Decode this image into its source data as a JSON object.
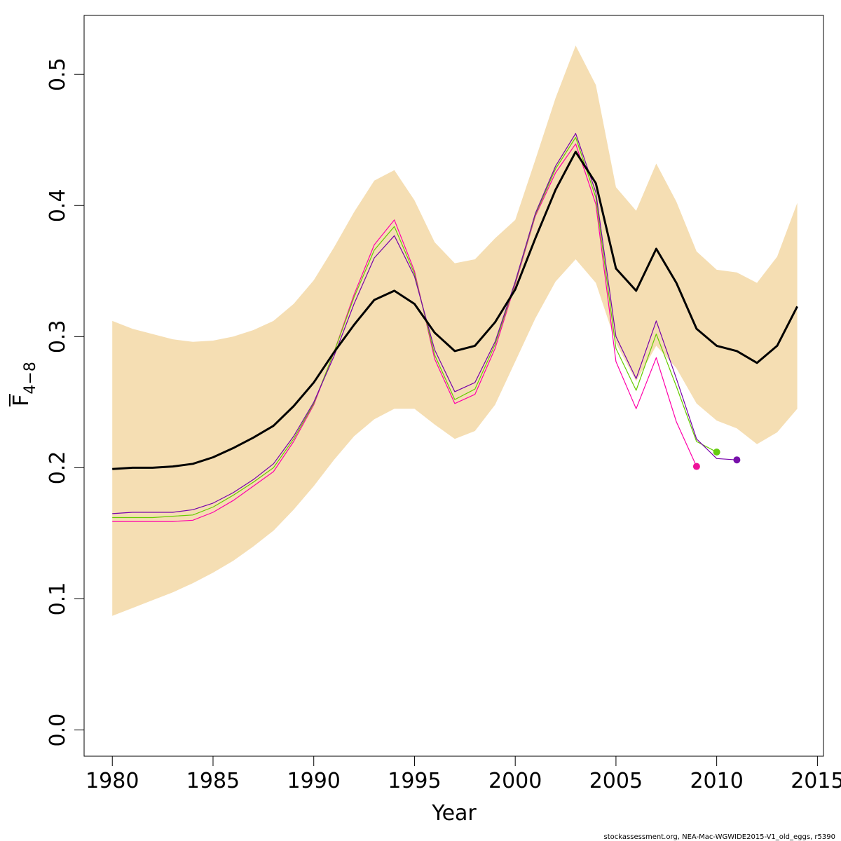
{
  "chart_data": {
    "type": "line",
    "xlabel": "Year",
    "ylabel_main": "F",
    "ylabel_sub": "4−8",
    "xlim": [
      1978.6,
      2015.3
    ],
    "ylim": [
      -0.02,
      0.545
    ],
    "x_ticks": [
      1980,
      1985,
      1990,
      1995,
      2000,
      2005,
      2010,
      2015
    ],
    "y_ticks": [
      0.0,
      0.1,
      0.2,
      0.3,
      0.4,
      0.5
    ],
    "y_tick_labels": [
      "0.0",
      "0.1",
      "0.2",
      "0.3",
      "0.4",
      "0.5"
    ],
    "grid": false,
    "legend": "none",
    "band": {
      "color": "#f5deb3",
      "x": [
        1980,
        1981,
        1982,
        1983,
        1984,
        1985,
        1986,
        1987,
        1988,
        1989,
        1990,
        1991,
        1992,
        1993,
        1994,
        1995,
        1996,
        1997,
        1998,
        1999,
        2000,
        2001,
        2002,
        2003,
        2004,
        2005,
        2006,
        2007,
        2008,
        2009,
        2010,
        2011,
        2012,
        2013,
        2014
      ],
      "upper": [
        0.312,
        0.306,
        0.302,
        0.298,
        0.296,
        0.297,
        0.3,
        0.305,
        0.312,
        0.325,
        0.343,
        0.368,
        0.395,
        0.419,
        0.427,
        0.404,
        0.372,
        0.356,
        0.359,
        0.375,
        0.389,
        0.435,
        0.482,
        0.522,
        0.492,
        0.414,
        0.396,
        0.432,
        0.403,
        0.365,
        0.351,
        0.349,
        0.341,
        0.361,
        0.402
      ],
      "lower": [
        0.087,
        0.093,
        0.099,
        0.105,
        0.112,
        0.12,
        0.129,
        0.14,
        0.152,
        0.168,
        0.186,
        0.206,
        0.224,
        0.237,
        0.245,
        0.245,
        0.233,
        0.222,
        0.228,
        0.248,
        0.281,
        0.314,
        0.342,
        0.359,
        0.341,
        0.295,
        0.266,
        0.293,
        0.276,
        0.249,
        0.236,
        0.23,
        0.218,
        0.227,
        0.245
      ]
    },
    "series": [
      {
        "color": "#000000",
        "x": [
          1980,
          1981,
          1982,
          1983,
          1984,
          1985,
          1986,
          1987,
          1988,
          1989,
          1990,
          1991,
          1992,
          1993,
          1994,
          1995,
          1996,
          1997,
          1998,
          1999,
          2000,
          2001,
          2002,
          2003,
          2004,
          2005,
          2006,
          2007,
          2008,
          2009,
          2010,
          2011,
          2012,
          2013,
          2014
        ],
        "values": [
          0.199,
          0.2,
          0.2,
          0.201,
          0.203,
          0.208,
          0.215,
          0.223,
          0.232,
          0.247,
          0.265,
          0.288,
          0.309,
          0.328,
          0.335,
          0.325,
          0.303,
          0.289,
          0.293,
          0.311,
          0.336,
          0.375,
          0.412,
          0.441,
          0.417,
          0.352,
          0.335,
          0.367,
          0.341,
          0.306,
          0.293,
          0.289,
          0.28,
          0.293,
          0.323
        ]
      },
      {
        "color": "#ff00aa",
        "x": [
          1980,
          1981,
          1982,
          1983,
          1984,
          1985,
          1986,
          1987,
          1988,
          1989,
          1990,
          1991,
          1992,
          1993,
          1994,
          1995,
          1996,
          1997,
          1998,
          1999,
          2000,
          2001,
          2002,
          2003,
          2004,
          2005,
          2006,
          2007,
          2008,
          2009
        ],
        "values": [
          0.159,
          0.159,
          0.159,
          0.159,
          0.16,
          0.166,
          0.175,
          0.186,
          0.197,
          0.22,
          0.248,
          0.288,
          0.332,
          0.37,
          0.389,
          0.35,
          0.283,
          0.249,
          0.256,
          0.291,
          0.34,
          0.392,
          0.425,
          0.447,
          0.401,
          0.281,
          0.245,
          0.284,
          0.235,
          0.201
        ]
      },
      {
        "color": "#66cc00",
        "x": [
          1980,
          1981,
          1982,
          1983,
          1984,
          1985,
          1986,
          1987,
          1988,
          1989,
          1990,
          1991,
          1992,
          1993,
          1994,
          1995,
          1996,
          1997,
          1998,
          1999,
          2000,
          2001,
          2002,
          2003,
          2004,
          2005,
          2006,
          2007,
          2008,
          2009,
          2010
        ],
        "values": [
          0.162,
          0.162,
          0.162,
          0.163,
          0.164,
          0.17,
          0.179,
          0.189,
          0.2,
          0.222,
          0.249,
          0.288,
          0.33,
          0.366,
          0.384,
          0.348,
          0.286,
          0.252,
          0.26,
          0.294,
          0.341,
          0.393,
          0.428,
          0.452,
          0.406,
          0.291,
          0.259,
          0.302,
          0.262,
          0.22,
          0.212
        ]
      },
      {
        "color": "#7700aa",
        "x": [
          1980,
          1981,
          1982,
          1983,
          1984,
          1985,
          1986,
          1987,
          1988,
          1989,
          1990,
          1991,
          1992,
          1993,
          1994,
          1995,
          1996,
          1997,
          1998,
          1999,
          2000,
          2001,
          2002,
          2003,
          2004,
          2005,
          2006,
          2007,
          2008,
          2009,
          2010,
          2011
        ],
        "values": [
          0.165,
          0.166,
          0.166,
          0.166,
          0.168,
          0.173,
          0.181,
          0.191,
          0.203,
          0.224,
          0.25,
          0.285,
          0.325,
          0.36,
          0.377,
          0.346,
          0.29,
          0.258,
          0.265,
          0.296,
          0.342,
          0.394,
          0.43,
          0.455,
          0.41,
          0.3,
          0.268,
          0.312,
          0.268,
          0.222,
          0.207,
          0.206
        ]
      }
    ],
    "end_points": [
      {
        "x": 2009,
        "y": 0.201,
        "color": "#ee1199"
      },
      {
        "x": 2010,
        "y": 0.212,
        "color": "#66cc11"
      },
      {
        "x": 2011,
        "y": 0.206,
        "color": "#7711aa"
      }
    ]
  },
  "caption": "stockassessment.org, NEA-Mac-WGWIDE2015-V1_old_eggs, r5390"
}
